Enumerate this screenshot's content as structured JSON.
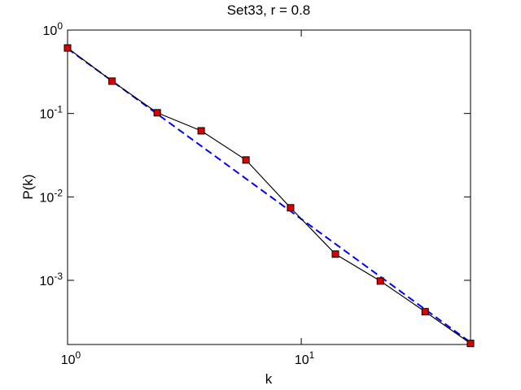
{
  "chart_data": {
    "type": "line",
    "title": "Set33, r = 0.8",
    "xlabel": "k",
    "ylabel": "P(k)",
    "xscale": "log",
    "yscale": "log",
    "xlim": [
      1,
      53
    ],
    "ylim": [
      0.00017,
      1
    ],
    "xticks": [
      {
        "value": 1,
        "label": "10^0"
      },
      {
        "value": 10,
        "label": "10^1"
      }
    ],
    "yticks": [
      {
        "value": 1,
        "label": "10^0"
      },
      {
        "value": 0.1,
        "label": "10^-1"
      },
      {
        "value": 0.01,
        "label": "10^-2"
      },
      {
        "value": 0.001,
        "label": "10^-3"
      }
    ],
    "series": [
      {
        "color": "#000000",
        "marker_color": "#dd0000",
        "style": "solid",
        "x": [
          1,
          1.55,
          2.42,
          3.73,
          5.8,
          9.0,
          14.0,
          21.8,
          33.9,
          53
        ],
        "values": [
          0.61,
          0.244,
          0.102,
          0.062,
          0.0277,
          0.0074,
          0.00206,
          0.00098,
          0.00042,
          0.000175
        ]
      },
      {
        "color": "#0000ff",
        "style": "dashed",
        "x": [
          1,
          53
        ],
        "values": [
          0.6,
          0.00018
        ]
      }
    ]
  }
}
